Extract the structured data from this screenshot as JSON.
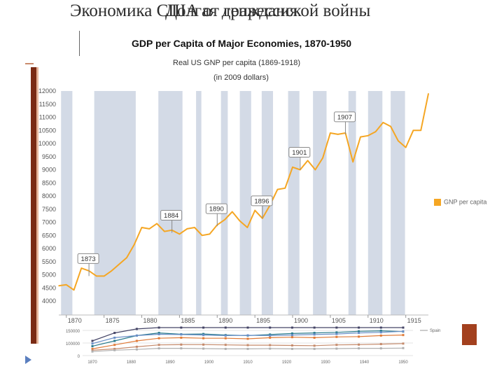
{
  "slide": {
    "title_back": "Экономика США от гражданской войны",
    "title_front": "Долгая депрессия"
  },
  "header": {
    "title": "GDP per Capita of Major Economies, 1870-1950",
    "subtitle_line1": "Real US GNP per capita (1869-1918)",
    "subtitle_line2": "(in 2009 dollars)"
  },
  "legend": {
    "label": "GNP per capita"
  },
  "chart_data": [
    {
      "type": "line",
      "title": "Real US GNP per capita (1869-1918)",
      "subtitle": "(in 2009 dollars)",
      "xlim": [
        1869,
        1918
      ],
      "ylim": [
        4000,
        12000
      ],
      "y_ticks": [
        4000,
        4500,
        5000,
        5500,
        6000,
        6500,
        7000,
        7500,
        8000,
        8500,
        9000,
        9500,
        10000,
        10500,
        11000,
        11500,
        12000
      ],
      "x_ticks": [
        1870,
        1875,
        1880,
        1885,
        1890,
        1895,
        1900,
        1905,
        1910,
        1915
      ],
      "x_tick_labels": [
        "1870",
        "1875",
        "1880",
        "1885",
        "1890",
        "1895",
        "1900",
        "1905",
        "1910",
        "1915"
      ],
      "grid": false,
      "legend_position": "right",
      "recession_bands": [
        [
          1869.3,
          1870.8
        ],
        [
          1873.7,
          1879.2
        ],
        [
          1882.2,
          1885.4
        ],
        [
          1887.2,
          1887.9
        ],
        [
          1890.5,
          1891.4
        ],
        [
          1893.0,
          1894.5
        ],
        [
          1895.9,
          1897.4
        ],
        [
          1899.4,
          1900.9
        ],
        [
          1902.7,
          1904.5
        ],
        [
          1907.4,
          1908.4
        ],
        [
          1910.0,
          1911.9
        ],
        [
          1913.0,
          1914.9
        ]
      ],
      "annotations": [
        {
          "label": "1873",
          "x": 1873,
          "y": 4950
        },
        {
          "label": "1884",
          "x": 1884,
          "y": 6600
        },
        {
          "label": "1890",
          "x": 1890,
          "y": 6850
        },
        {
          "label": "1896",
          "x": 1896,
          "y": 7150
        },
        {
          "label": "1901",
          "x": 1901,
          "y": 9000
        },
        {
          "label": "1907",
          "x": 1907,
          "y": 10350
        }
      ],
      "series": [
        {
          "name": "GNP per capita",
          "color": "#f5a623",
          "x": [
            1869,
            1870,
            1871,
            1872,
            1873,
            1874,
            1875,
            1876,
            1877,
            1878,
            1879,
            1880,
            1881,
            1882,
            1883,
            1884,
            1885,
            1886,
            1887,
            1888,
            1889,
            1890,
            1891,
            1892,
            1893,
            1894,
            1895,
            1896,
            1897,
            1898,
            1899,
            1900,
            1901,
            1902,
            1903,
            1904,
            1905,
            1906,
            1907,
            1908,
            1909,
            1910,
            1911,
            1912,
            1913,
            1914,
            1915,
            1916,
            1917,
            1918
          ],
          "values": [
            4580,
            4620,
            4420,
            5250,
            5150,
            4950,
            4950,
            5150,
            5400,
            5650,
            6150,
            6800,
            6750,
            6950,
            6650,
            6700,
            6550,
            6750,
            6800,
            6500,
            6550,
            6900,
            7100,
            7400,
            7050,
            6800,
            7450,
            7150,
            7650,
            8250,
            8300,
            9100,
            9000,
            9350,
            9000,
            9450,
            10400,
            10350,
            10400,
            9300,
            10250,
            10300,
            10450,
            10800,
            10650,
            10100,
            9850,
            10500,
            10500,
            11900
          ]
        }
      ]
    },
    {
      "type": "line",
      "title": "",
      "ylim": [
        0,
        20000
      ],
      "y_tick_labels": [
        "0",
        "100000",
        "150000"
      ],
      "x_tick_labels": [
        "1870",
        "1880",
        "1890",
        "1900",
        "1910",
        "1920",
        "1930",
        "1940",
        "1950"
      ],
      "legend_labels": [
        "Spain"
      ]
    }
  ]
}
